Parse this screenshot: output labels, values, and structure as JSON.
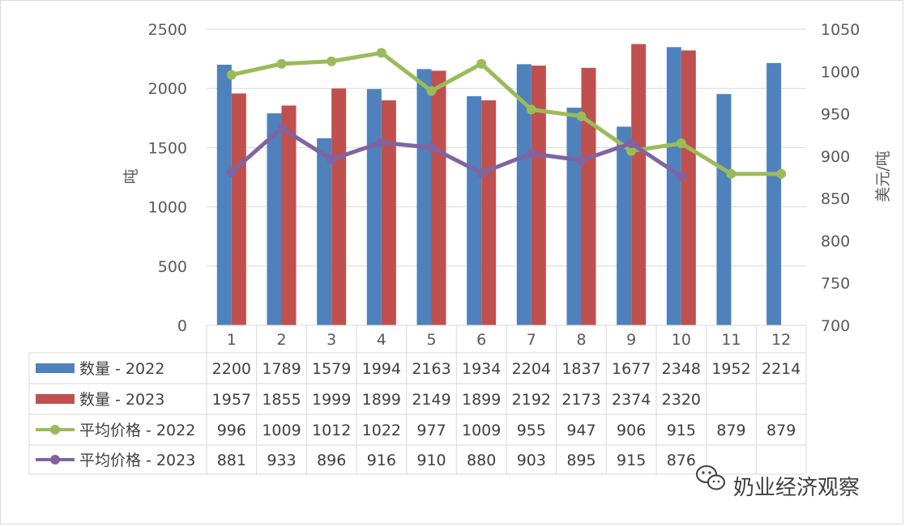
{
  "chart_data": {
    "type": "bar",
    "categories": [
      "1",
      "2",
      "3",
      "4",
      "5",
      "6",
      "7",
      "8",
      "9",
      "10",
      "11",
      "12"
    ],
    "series": [
      {
        "name": "数量 - 2022",
        "kind": "bar",
        "axis": "left",
        "color": "#4f81bd",
        "values": [
          2200,
          1789,
          1579,
          1994,
          2163,
          1934,
          2204,
          1837,
          1677,
          2348,
          1952,
          2214
        ]
      },
      {
        "name": "数量 - 2023",
        "kind": "bar",
        "axis": "left",
        "color": "#c0504d",
        "values": [
          1957,
          1855,
          1999,
          1899,
          2149,
          1899,
          2192,
          2173,
          2374,
          2320,
          null,
          null
        ]
      },
      {
        "name": "平均价格 - 2022",
        "kind": "line",
        "axis": "right",
        "color": "#9bbb59",
        "values": [
          996,
          1009,
          1012,
          1022,
          977,
          1009,
          955,
          947,
          906,
          915,
          879,
          879
        ]
      },
      {
        "name": "平均价格 - 2023",
        "kind": "line",
        "axis": "right",
        "color": "#8064a2",
        "values": [
          881,
          933,
          896,
          916,
          910,
          880,
          903,
          895,
          915,
          876,
          null,
          null
        ]
      }
    ],
    "ylabel": "吨",
    "y2label": "美元/吨",
    "ylim": [
      0,
      2500
    ],
    "y2lim": [
      700,
      1050
    ],
    "yticks": [
      "0",
      "500",
      "1000",
      "1500",
      "2000",
      "2500"
    ],
    "y2ticks": [
      "700",
      "750",
      "800",
      "850",
      "900",
      "950",
      "1000",
      "1050"
    ],
    "grid": true,
    "legend": "data-table"
  },
  "watermark": "奶业经济观察"
}
